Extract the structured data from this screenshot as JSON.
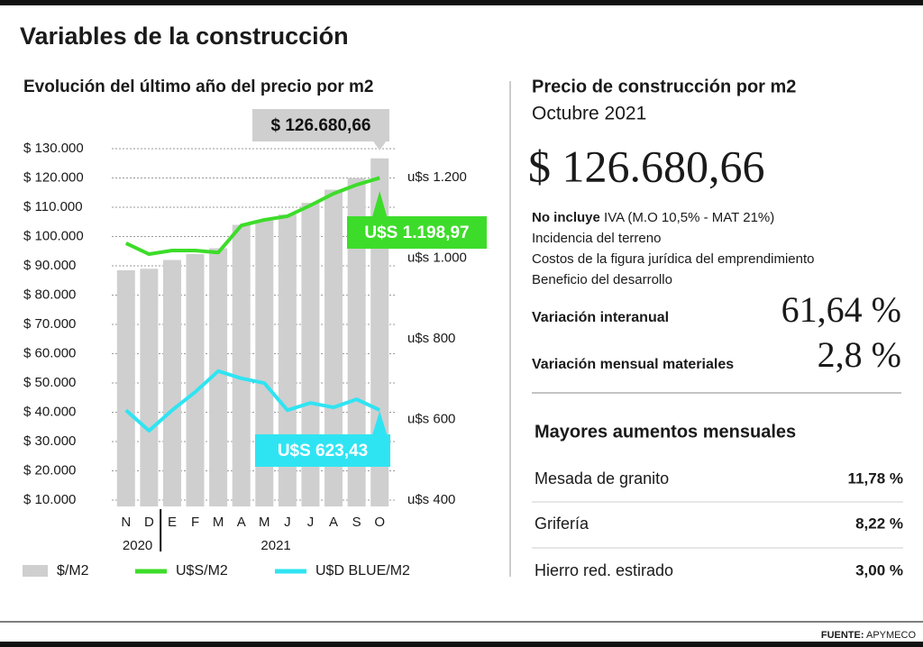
{
  "header": {
    "title": "Variables de la construcción"
  },
  "chart_data": {
    "type": "bar",
    "title": "Evolución del último año del precio por m2",
    "categories": [
      "N",
      "D",
      "E",
      "F",
      "M",
      "A",
      "M",
      "J",
      "J",
      "A",
      "S",
      "O"
    ],
    "year_labels": [
      "2020",
      "2021"
    ],
    "series": [
      {
        "name": "$/M2",
        "type": "bar",
        "color": "#cfcfcf",
        "values": [
          88500,
          89000,
          92000,
          94000,
          96000,
          104000,
          105500,
          107500,
          111500,
          116000,
          120000,
          126680.66
        ]
      },
      {
        "name": "U$S/M2",
        "type": "line",
        "axis": "y2",
        "color": "#3ddc2a",
        "values": [
          1037,
          1010,
          1019,
          1019,
          1014,
          1081,
          1095,
          1104,
          1131,
          1160,
          1182,
          1198.97
        ]
      },
      {
        "name": "U$D BLUE/M2",
        "type": "line",
        "axis": "y2",
        "color": "#2fe4f2",
        "values": [
          623,
          572,
          623,
          668,
          720,
          702,
          690,
          623,
          641,
          630,
          650,
          623.43
        ]
      }
    ],
    "annotations": [
      "$ 126.680,66",
      "U$S 1.198,97",
      "U$S 623,43"
    ],
    "ylim": [
      10000,
      130000
    ],
    "yticks": [
      {
        "value": 10000,
        "label": "$ 10.000"
      },
      {
        "value": 20000,
        "label": "$ 20.000"
      },
      {
        "value": 30000,
        "label": "$ 30.000"
      },
      {
        "value": 40000,
        "label": "$ 40.000"
      },
      {
        "value": 50000,
        "label": "$ 50.000"
      },
      {
        "value": 60000,
        "label": "$ 60.000"
      },
      {
        "value": 70000,
        "label": "$ 70.000"
      },
      {
        "value": 80000,
        "label": "$ 80.000"
      },
      {
        "value": 90000,
        "label": "$ 90.000"
      },
      {
        "value": 100000,
        "label": "$ 100.000"
      },
      {
        "value": 110000,
        "label": "$ 110.000"
      },
      {
        "value": 120000,
        "label": "$ 120.000"
      },
      {
        "value": 130000,
        "label": "$ 130.000"
      }
    ],
    "y2lim": [
      400,
      1200
    ],
    "y2ticks": [
      {
        "value": 400,
        "label": "u$s 400"
      },
      {
        "value": 600,
        "label": "u$s 600"
      },
      {
        "value": 800,
        "label": "u$s 800"
      },
      {
        "value": 1000,
        "label": "u$s 1.000"
      },
      {
        "value": 1200,
        "label": "u$s 1.200"
      }
    ],
    "grid": true,
    "legend": "bottom"
  },
  "price_panel": {
    "title": "Precio de construcción por m2",
    "subtitle": "Octubre 2021",
    "price": "$ 126.680,66",
    "notes": [
      {
        "bold": "No incluye",
        "text": "IVA (M.O 10,5% - MAT 21%)"
      },
      "Incidencia del terreno",
      "Costos de la figura jurídica del emprendimiento",
      "Beneficio del desarrollo"
    ],
    "variations": [
      {
        "label": "Variación interanual",
        "value": "61,64 %"
      },
      {
        "label": "Variación mensual materiales",
        "value": "2,8 %"
      }
    ]
  },
  "increases": {
    "title": "Mayores aumentos mensuales",
    "rows": [
      [
        "Mesada de granito",
        "11,78 %"
      ],
      [
        "Grifería",
        "8,22 %"
      ],
      [
        "Hierro red. estirado",
        "3,00 %"
      ]
    ]
  },
  "footer": {
    "label": "FUENTE:",
    "source": "APYMECO"
  }
}
